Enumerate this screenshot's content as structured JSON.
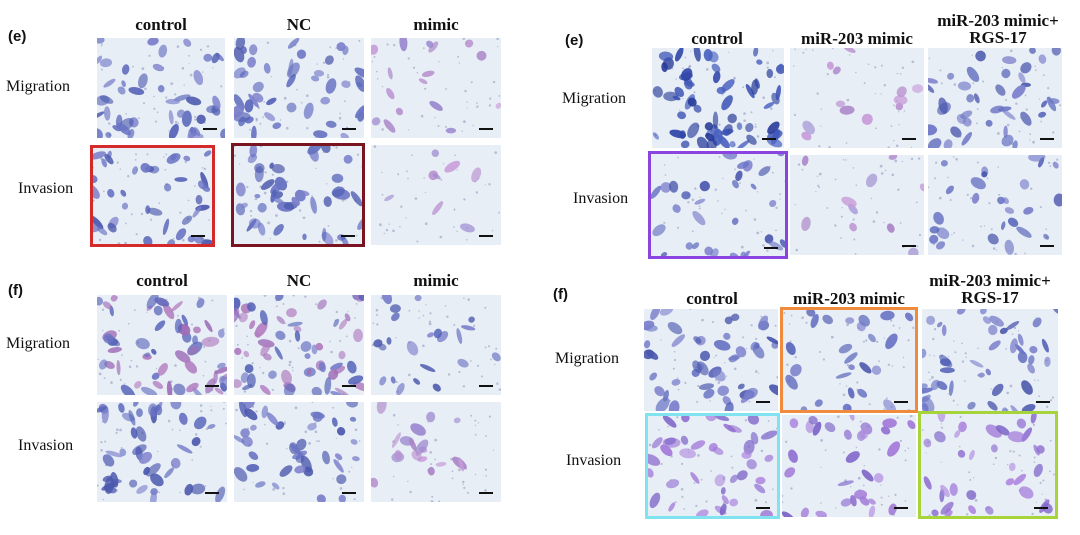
{
  "panels": [
    {
      "label": "(e)",
      "columns": [
        "control",
        "NC",
        "mimic"
      ],
      "rows": [
        "Migration",
        "Invasion"
      ],
      "highlight_colors": {
        "invasion_control": "#d42a2a",
        "invasion_nc": "#7a1420"
      }
    },
    {
      "label": "(e)",
      "columns": [
        "control",
        "miR-203 mimic",
        "miR-203 mimic+\nRGS-17"
      ],
      "rows": [
        "Migration",
        "Invasion"
      ],
      "highlight_colors": {
        "invasion_control": "#8a44e0"
      }
    },
    {
      "label": "(f)",
      "columns": [
        "control",
        "NC",
        "mimic"
      ],
      "rows": [
        "Migration",
        "Invasion"
      ]
    },
    {
      "label": "(f)",
      "columns": [
        "control",
        "miR-203 mimic",
        "miR-203 mimic+\nRGS-17"
      ],
      "rows": [
        "Migration",
        "Invasion"
      ],
      "highlight_colors": {
        "migration_mimic": "#f08a3c",
        "invasion_control": "#7fe3f0",
        "invasion_rgs17": "#a6d43a"
      }
    }
  ]
}
